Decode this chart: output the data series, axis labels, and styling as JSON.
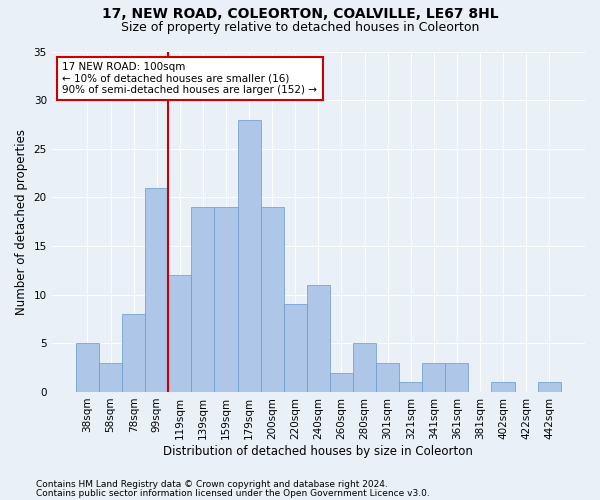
{
  "title1": "17, NEW ROAD, COLEORTON, COALVILLE, LE67 8HL",
  "title2": "Size of property relative to detached houses in Coleorton",
  "xlabel": "Distribution of detached houses by size in Coleorton",
  "ylabel": "Number of detached properties",
  "bar_values": [
    5,
    3,
    8,
    21,
    12,
    19,
    19,
    28,
    19,
    9,
    11,
    2,
    5,
    3,
    1,
    3,
    3,
    0,
    1,
    0,
    1
  ],
  "bar_labels": [
    "38sqm",
    "58sqm",
    "78sqm",
    "99sqm",
    "119sqm",
    "139sqm",
    "159sqm",
    "179sqm",
    "200sqm",
    "220sqm",
    "240sqm",
    "260sqm",
    "280sqm",
    "301sqm",
    "321sqm",
    "341sqm",
    "361sqm",
    "381sqm",
    "402sqm",
    "422sqm",
    "442sqm"
  ],
  "bar_color": "#aec6e8",
  "bar_edge_color": "#6699cc",
  "vline_color": "#cc0000",
  "vline_index": 3.5,
  "annotation_text": "17 NEW ROAD: 100sqm\n← 10% of detached houses are smaller (16)\n90% of semi-detached houses are larger (152) →",
  "annotation_box_color": "#ffffff",
  "annotation_box_edge": "#cc0000",
  "ylim": [
    0,
    35
  ],
  "yticks": [
    0,
    5,
    10,
    15,
    20,
    25,
    30,
    35
  ],
  "footer1": "Contains HM Land Registry data © Crown copyright and database right 2024.",
  "footer2": "Contains public sector information licensed under the Open Government Licence v3.0.",
  "background_color": "#eaf0f8",
  "grid_color": "#ffffff",
  "title1_fontsize": 10,
  "title2_fontsize": 9,
  "xlabel_fontsize": 8.5,
  "ylabel_fontsize": 8.5,
  "tick_fontsize": 7.5,
  "annot_fontsize": 7.5,
  "footer_fontsize": 6.5
}
